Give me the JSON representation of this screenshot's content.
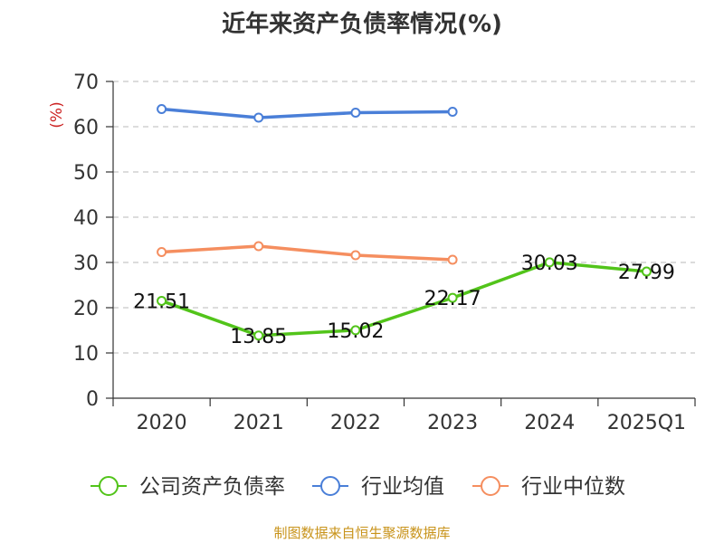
{
  "title": "近年来资产负债率情况(%)",
  "source": "制图数据来自恒生聚源数据库",
  "chart_data": {
    "type": "line",
    "title": "近年来资产负债率情况(%)",
    "xlabel": "",
    "ylabel": "(%)",
    "categories": [
      "2020",
      "2021",
      "2022",
      "2023",
      "2024",
      "2025Q1"
    ],
    "ylim": [
      0,
      70
    ],
    "yticks": [
      0,
      10,
      20,
      30,
      40,
      50,
      60,
      70
    ],
    "grid": true,
    "legend_position": "bottom",
    "series": [
      {
        "name": "公司资产负债率",
        "color": "#52c41a",
        "values": [
          21.51,
          13.85,
          15.02,
          22.17,
          30.03,
          27.99
        ],
        "labels": [
          "21.51",
          "13.85",
          "15.02",
          "22.17",
          "30.03",
          "27.99"
        ]
      },
      {
        "name": "行业均值",
        "color": "#4a7fd8",
        "values": [
          63.9,
          62.0,
          63.1,
          63.3,
          null,
          null
        ]
      },
      {
        "name": "行业中位数",
        "color": "#f58e5f",
        "values": [
          32.3,
          33.6,
          31.6,
          30.6,
          null,
          null
        ]
      }
    ]
  }
}
